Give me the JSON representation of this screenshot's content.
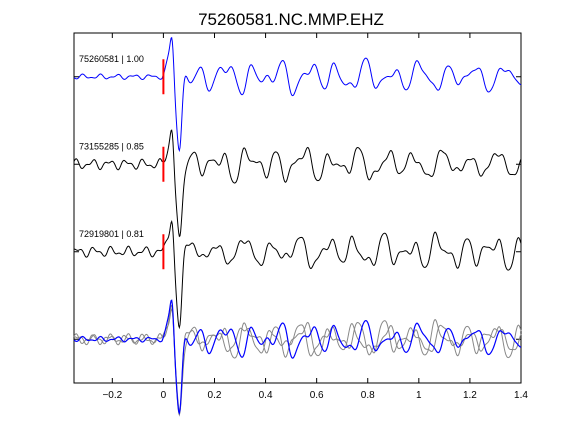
{
  "chart_data": {
    "type": "line",
    "title": "75260581.NC.MMP.EHZ",
    "xlabel": "",
    "ylabel": "",
    "xlim": [
      -0.35,
      1.4
    ],
    "ylim": [
      -0.5,
      3.5
    ],
    "grid": false,
    "x_ticks": [
      -0.2,
      0,
      0.2,
      0.4,
      0.6,
      0.8,
      1,
      1.2,
      1.4
    ],
    "x_tick_labels": [
      "−0.2",
      "0",
      "0.2",
      "0.4",
      "0.6",
      "0.8",
      "1",
      "1.2",
      "1.4"
    ],
    "pick_time": 0,
    "colors": {
      "reference": "#0000ff",
      "match": "#000000",
      "overlay": "#888888",
      "pick": "#ff0000"
    },
    "traces": [
      {
        "label": "75260581 | 1.00",
        "offset": 3,
        "color": "#0000ff",
        "seed": 0,
        "noise": 0.02
      },
      {
        "label": "73155285 | 0.85",
        "offset": 2,
        "color": "#000000",
        "seed": 1.3,
        "noise": 0.04
      },
      {
        "label": "72919801 | 0.81",
        "offset": 1,
        "color": "#000000",
        "seed": 2.1,
        "noise": 0.04
      }
    ],
    "overlay": {
      "offset": 0
    }
  }
}
